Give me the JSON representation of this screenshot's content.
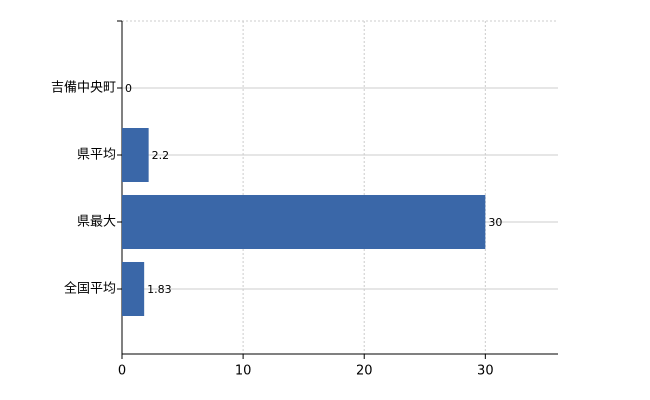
{
  "chart_data": {
    "type": "bar",
    "orientation": "horizontal",
    "categories": [
      "吉備中央町",
      "県平均",
      "県最大",
      "全国平均"
    ],
    "values": [
      0,
      2.2,
      30,
      1.83
    ],
    "color": "#3a67a8",
    "xlim": [
      0,
      36
    ],
    "xticks": [
      0,
      10,
      20,
      30
    ],
    "grid": true
  }
}
